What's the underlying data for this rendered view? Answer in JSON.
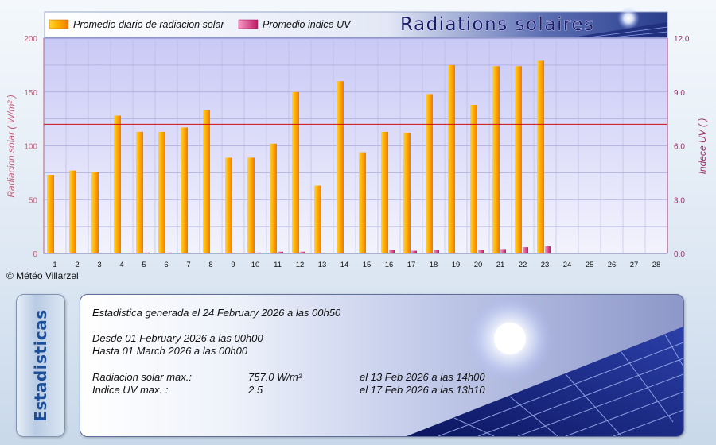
{
  "chart_data": {
    "type": "bar",
    "title": "Radiations solaires",
    "categories": [
      "1",
      "2",
      "3",
      "4",
      "5",
      "6",
      "7",
      "8",
      "9",
      "10",
      "11",
      "12",
      "13",
      "14",
      "15",
      "16",
      "17",
      "18",
      "19",
      "20",
      "21",
      "22",
      "23",
      "24",
      "25",
      "26",
      "27",
      "28"
    ],
    "ylabel": "Radiacion solar ( W/m² )",
    "y2label": "Indece UV (  )",
    "ylim": [
      0,
      200
    ],
    "y2lim": [
      0,
      12
    ],
    "yticks": [
      "0",
      "50",
      "100",
      "150",
      "200"
    ],
    "y2ticks": [
      "0.0",
      "3.0",
      "6.0",
      "9.0",
      "12.0"
    ],
    "reference_line": 120,
    "grid": true,
    "legend_position": "top-left",
    "series": [
      {
        "name": "Promedio diario de radiacion solar",
        "axis": "left",
        "color": "#ff9c00",
        "values": [
          73,
          77,
          76,
          128,
          113,
          113,
          117,
          133,
          89,
          89,
          102,
          150,
          63,
          160,
          94,
          113,
          112,
          148,
          175,
          138,
          174,
          174,
          179,
          null,
          null,
          null,
          null,
          null
        ]
      },
      {
        "name": "Promedio indice UV",
        "axis": "right",
        "color": "#e0307e",
        "values": [
          0,
          0,
          0,
          0,
          0.05,
          0.05,
          0,
          0,
          0,
          0.05,
          0.1,
          0.1,
          0,
          0,
          0,
          0.2,
          0.15,
          0.2,
          0,
          0.2,
          0.25,
          0.35,
          0.4,
          null,
          null,
          null,
          null,
          null
        ]
      }
    ]
  },
  "colors": {
    "bar_solar": "#ff9c00",
    "bar_uv": "#e0307e",
    "axis_left": "#c0607a",
    "axis_right": "#a0306a",
    "reference": "#cc1111"
  },
  "copyright": "© Météo Villarzel",
  "side_label": "Estadisticas",
  "stats": {
    "generated": "Estadistica generada el 24 February 2026 a las 00h50",
    "from": "Desde 01 February 2026 a las 00h00",
    "to": "Hasta 01 March 2026 a las 00h00",
    "radiation_label": "Radiacion solar max.:",
    "radiation_value": "757.0 W/m²",
    "radiation_date": "el 13 Feb 2026 a las 14h00",
    "uv_label": "Indice UV max. :",
    "uv_value": "2.5",
    "uv_date": "el 17 Feb 2026 a las 13h10"
  }
}
